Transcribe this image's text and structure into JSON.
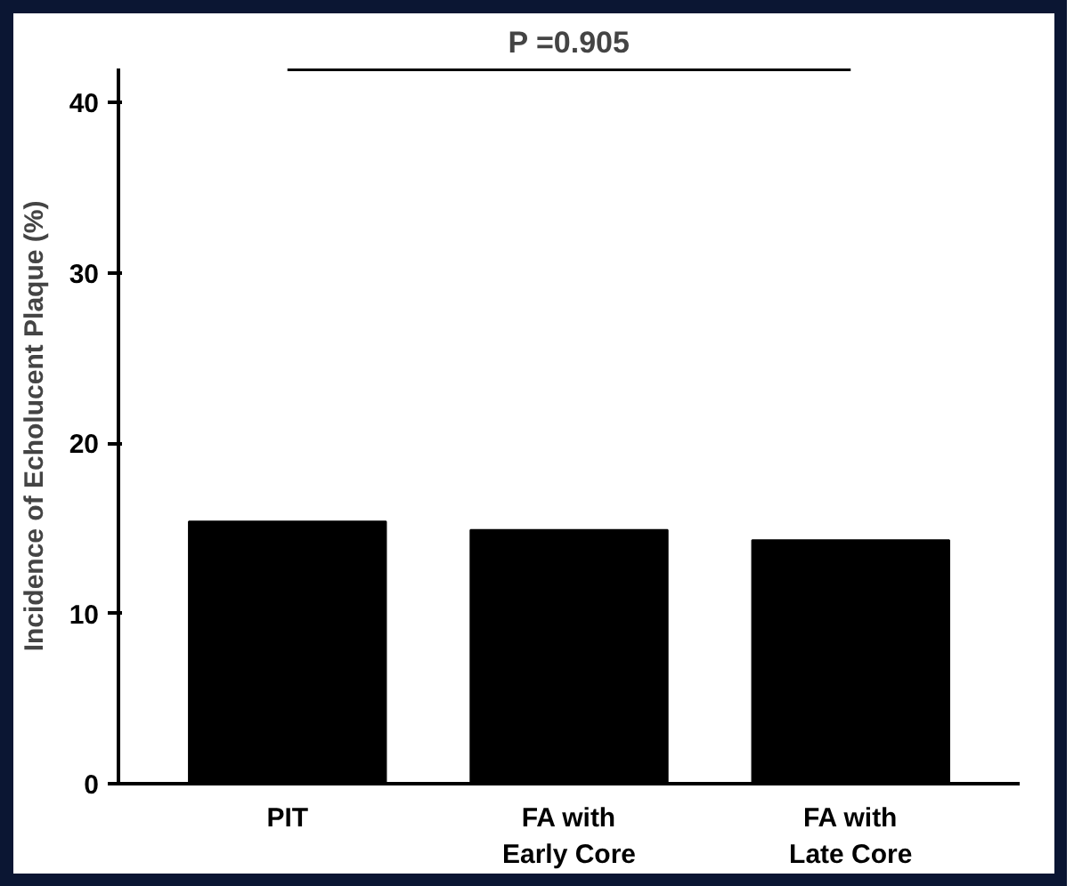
{
  "chart_data": {
    "type": "bar",
    "categories": [
      "PIT",
      "FA with\nEarly Core",
      "FA with\nLate Core"
    ],
    "values": [
      15.4,
      14.9,
      14.3
    ],
    "color": "#000000",
    "ylabel": "Incidence of Echolucent Plaque (%)",
    "ylim": [
      0,
      42
    ],
    "yticks": [
      0,
      10,
      20,
      30,
      40
    ],
    "annotations": [
      "P =0.905"
    ],
    "grid": false
  }
}
